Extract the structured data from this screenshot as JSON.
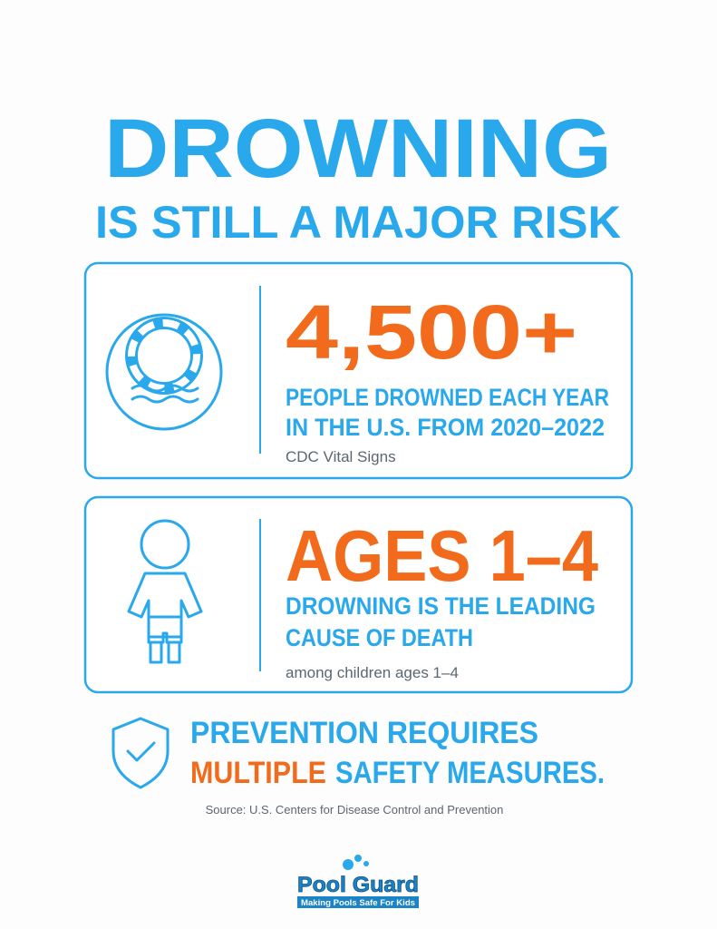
{
  "header": {
    "title": "DROWNING",
    "subtitle": "IS STILL A MAJOR RISK"
  },
  "cards": [
    {
      "stat": "4,500+",
      "lines": [
        "PEOPLE DROWNED EACH YEAR",
        "IN THE U.S. FROM 2020–2022"
      ],
      "note": "CDC Vital Signs"
    },
    {
      "stat": "AGES 1–4",
      "lines": [
        "DROWNING IS THE LEADING",
        "CAUSE OF DEATH"
      ],
      "note": "among children ages 1–4"
    }
  ],
  "prevention": {
    "line1": "PREVENTION REQUIRES",
    "highlight": "MULTIPLE",
    "rest": "SAFETY MEASURES."
  },
  "source": "Source: U.S. Centers for Disease Control and Prevention",
  "logo": {
    "name": "Pool Guard",
    "tagline": "Making Pools Safe For Kids"
  }
}
